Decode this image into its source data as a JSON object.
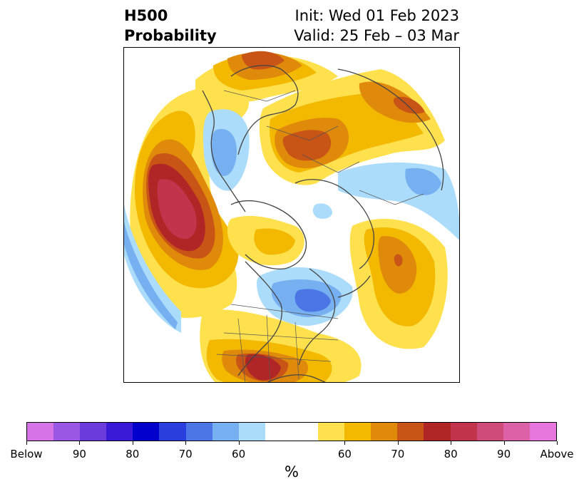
{
  "header": {
    "title_line1": "H500",
    "title_line2": "Probability",
    "init_label": "Init: Wed 01 Feb 2023",
    "valid_label": "Valid: 25 Feb – 03 Mar"
  },
  "colorbar": {
    "title": "%",
    "colors": [
      "#d673e6",
      "#9a57e3",
      "#6b3bdc",
      "#3a1ad6",
      "#0000cc",
      "#2a3fdd",
      "#4c76e6",
      "#76b0f0",
      "#acdcfb",
      "#ffffff",
      "#ffffff",
      "#ffe14d",
      "#f3b800",
      "#e08a0c",
      "#c85516",
      "#b02525",
      "#c2344c",
      "#cf4c7a",
      "#dc61a6",
      "#e777dd"
    ],
    "tick_labels": [
      {
        "text": "Below",
        "index": 0
      },
      {
        "text": "90",
        "index": 2
      },
      {
        "text": "80",
        "index": 4
      },
      {
        "text": "70",
        "index": 6
      },
      {
        "text": "60",
        "index": 8
      },
      {
        "text": "60",
        "index": 12
      },
      {
        "text": "70",
        "index": 14
      },
      {
        "text": "80",
        "index": 16
      },
      {
        "text": "90",
        "index": 18
      },
      {
        "text": "Above",
        "index": 20
      }
    ]
  },
  "map": {
    "palette": {
      "above_60": "#ffe14d",
      "above_65": "#f3b800",
      "above_70": "#e08a0c",
      "above_75": "#c85516",
      "above_80": "#b02525",
      "above_85": "#c2344c",
      "below_60": "#acdcfb",
      "below_65": "#76b0f0",
      "below_70": "#4c76e6",
      "coast": "#444444"
    }
  }
}
